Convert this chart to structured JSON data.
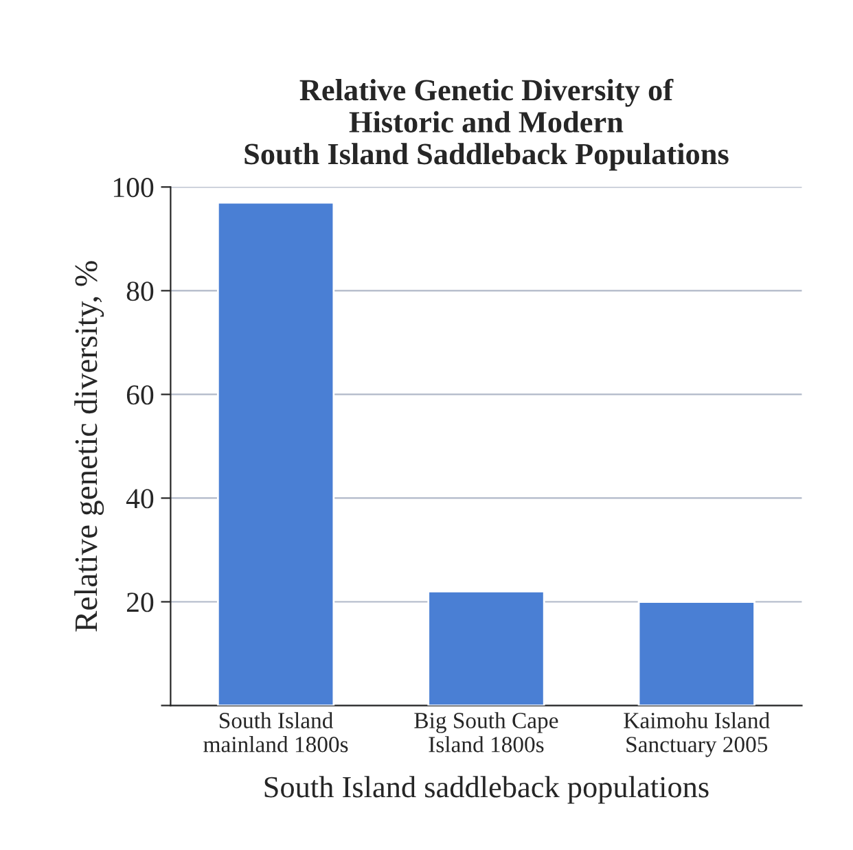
{
  "chart_data": {
    "type": "bar",
    "title": "Relative Genetic Diversity of\nHistoric and Modern\nSouth Island Saddleback Populations",
    "xlabel": "South Island saddleback populations",
    "ylabel": "Relative genetic diversity, %",
    "categories": [
      "South Island\nmainland 1800s",
      "Big South Cape\nIsland 1800s",
      "Kaimohu Island\nSanctuary 2005"
    ],
    "values": [
      97,
      22,
      20
    ],
    "color": "#4a7fd4",
    "ylim": [
      0,
      100
    ],
    "yticks": [
      {
        "value": 0,
        "label": null
      },
      20,
      40,
      60,
      80,
      100
    ],
    "grid": "y"
  }
}
